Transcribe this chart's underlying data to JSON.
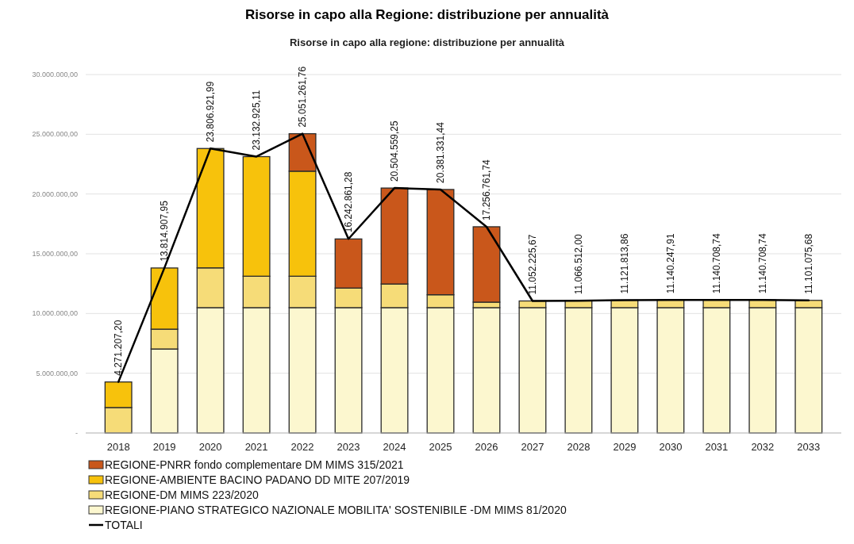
{
  "chart_data": {
    "type": "bar",
    "stacked": true,
    "title": "Risorse in capo alla Regione: distribuzione per annualità",
    "subtitle": "Risorse in capo alla regione: distribuzione per annualità",
    "categories": [
      "2018",
      "2019",
      "2020",
      "2021",
      "2022",
      "2023",
      "2024",
      "2025",
      "2026",
      "2027",
      "2028",
      "2029",
      "2030",
      "2031",
      "2032",
      "2033"
    ],
    "series": [
      {
        "name": "REGIONE-PIANO STRATEGICO NAZIONALE MOBILITA' SOSTENIBILE -DM MIMS 81/2020",
        "color": "#fcf7cf",
        "values": [
          0,
          7030000,
          10490000,
          10490000,
          10490000,
          10490000,
          10490000,
          10490000,
          10490000,
          10490000,
          10490000,
          10490000,
          10490000,
          10490000,
          10490000,
          10490000
        ]
      },
      {
        "name": "REGIONE-DM MIMS 223/2020",
        "color": "#f6dc78",
        "values": [
          2130000,
          1660000,
          3330000,
          2630000,
          2630000,
          1640000,
          1980000,
          1080000,
          460000,
          560000,
          570000,
          630000,
          650000,
          650000,
          650000,
          610000
        ]
      },
      {
        "name": "REGIONE-AMBIENTE BACINO PADANO DD MITE 207/2019",
        "color": "#f7c20c",
        "values": [
          2140000,
          5120000,
          9990000,
          10010000,
          8790000,
          0,
          0,
          0,
          0,
          0,
          0,
          0,
          0,
          0,
          0,
          0
        ]
      },
      {
        "name": "REGIONE-PNRR fondo complementare DM MIMS 315/2021",
        "color": "#c9571b",
        "values": [
          0,
          0,
          0,
          0,
          3140000,
          4110000,
          8030000,
          8810000,
          6310000,
          0,
          0,
          0,
          0,
          0,
          0,
          0
        ]
      },
      {
        "name": "TOTALI",
        "type": "line",
        "color": "#000000",
        "values": [
          4271207.2,
          13814907.95,
          23806921.99,
          23132925.11,
          25051261.76,
          16242861.28,
          20504559.25,
          20381331.44,
          17256761.74,
          11052225.67,
          11066512.0,
          11121813.86,
          11140247.91,
          11140708.74,
          11140708.74,
          11101075.68
        ],
        "value_labels": [
          "4.271.207,20",
          "13.814.907,95",
          "23.806.921,99",
          "23.132.925,11",
          "25.051.261,76",
          "16.242.861,28",
          "20.504.559,25",
          "20.381.331,44",
          "17.256.761,74",
          "11.052.225,67",
          "11.066.512,00",
          "11.121.813,86",
          "11.140.247,91",
          "11.140.708,74",
          "11.140.708,74",
          "11.101.075,68"
        ]
      }
    ],
    "ylim": [
      0,
      30000000
    ],
    "yticks": [
      {
        "value": 0,
        "label": "-"
      },
      {
        "value": 5000000,
        "label": "5.000.000,00"
      },
      {
        "value": 10000000,
        "label": "10.000.000,00"
      },
      {
        "value": 15000000,
        "label": "15.000.000,00"
      },
      {
        "value": 20000000,
        "label": "20.000.000,00"
      },
      {
        "value": 25000000,
        "label": "25.000.000,00"
      },
      {
        "value": 30000000,
        "label": "30.000.000,00"
      }
    ],
    "grid": "y",
    "legend": "bottom"
  }
}
